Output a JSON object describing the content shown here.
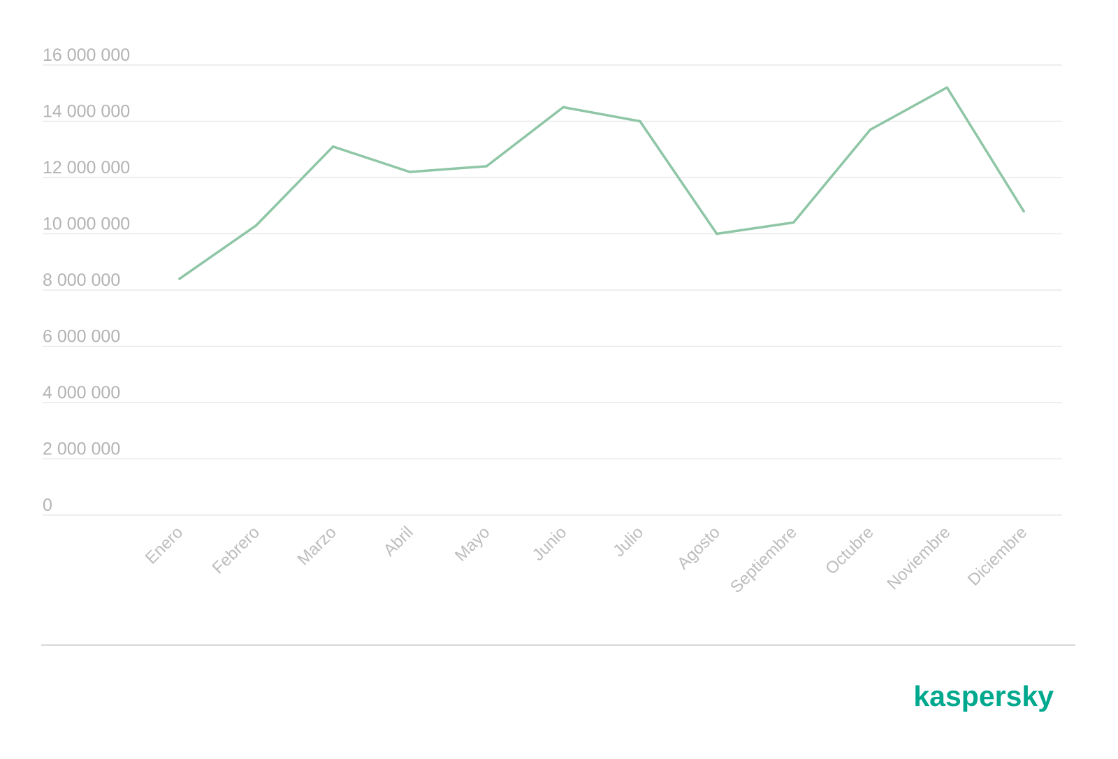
{
  "chart_data": {
    "type": "line",
    "categories": [
      "Enero",
      "Febrero",
      "Marzo",
      "Abril",
      "Mayo",
      "Junio",
      "Julio",
      "Agosto",
      "Septiembre",
      "Octubre",
      "Noviembre",
      "Diciembre"
    ],
    "series": [
      {
        "values": [
          8400000,
          10300000,
          13100000,
          12200000,
          12400000,
          14500000,
          14000000,
          10000000,
          10400000,
          13700000,
          15200000,
          10800000
        ]
      }
    ],
    "title": "",
    "xlabel": "",
    "ylabel": "",
    "ylim": [
      0,
      16000000
    ],
    "yticks": [
      0,
      2000000,
      4000000,
      6000000,
      8000000,
      10000000,
      12000000,
      14000000,
      16000000
    ],
    "ytick_labels": [
      "0",
      "2 000 000",
      "4 000 000",
      "6 000 000",
      "8 000 000",
      "10 000 000",
      "12 000 000",
      "14 000 000",
      "16 000 000"
    ],
    "grid": true,
    "legend": "none",
    "line_color": "#8ec6a6"
  },
  "brand": {
    "logo_text": "kaspersky",
    "color": "#00a88e"
  }
}
